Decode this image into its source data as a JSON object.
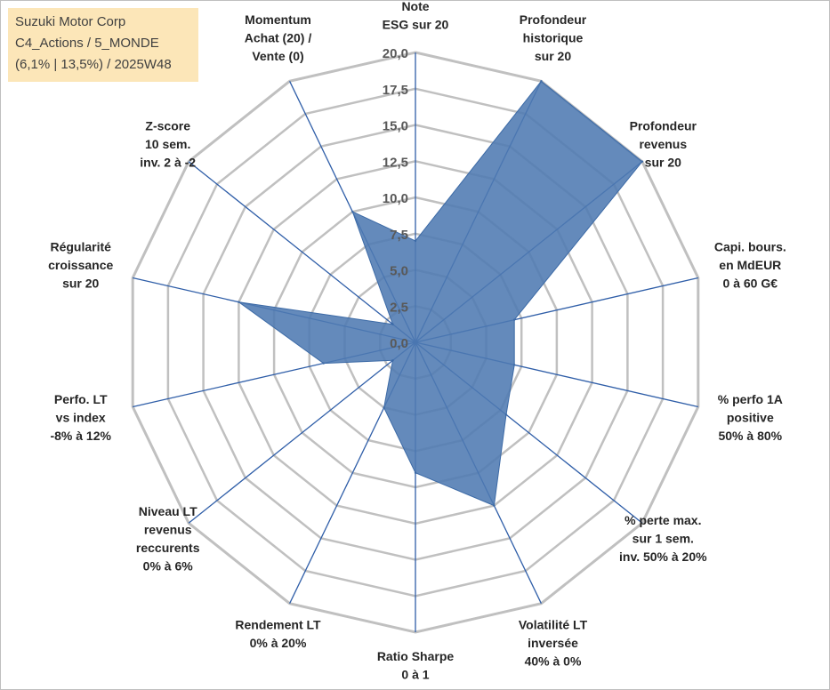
{
  "info_box": {
    "line1": "Suzuki Motor Corp",
    "line2": "C4_Actions / 5_MONDE",
    "line3": "(6,1% | 13,5%) / 2025W48"
  },
  "chart_data": {
    "type": "radar",
    "title": "",
    "rmin": 0,
    "rmax": 20,
    "tick_step": 2.5,
    "ticks": [
      "0,0",
      "2,5",
      "5,0",
      "7,5",
      "10,0",
      "12,5",
      "15,0",
      "17,5",
      "20,0"
    ],
    "categories": [
      [
        "Note",
        "ESG sur 20"
      ],
      [
        "Profondeur",
        "historique",
        "sur 20"
      ],
      [
        "Profondeur",
        "revenus",
        "sur 20"
      ],
      [
        "Capi. bours.",
        "en MdEUR",
        "0 à 60 G€"
      ],
      [
        "% perfo 1A",
        "positive",
        "50% à 80%"
      ],
      [
        "% perte max.",
        "sur 1 sem.",
        "inv. 50% à 20%"
      ],
      [
        "Volatilité LT",
        "inversée",
        "40% à 0%"
      ],
      [
        "Ratio Sharpe",
        "0 à 1"
      ],
      [
        "Rendement LT",
        "0% à 20%"
      ],
      [
        "Niveau LT",
        "revenus",
        "reccurents",
        "0% à 6%"
      ],
      [
        "Perfo. LT",
        "vs index",
        "-8% à 12%"
      ],
      [
        "Régularité",
        "croissance",
        "sur 20"
      ],
      [
        "Z-score",
        "10 sem.",
        "inv. 2 à -2"
      ],
      [
        "Momentum",
        "Achat (20) /",
        "Vente (0)"
      ]
    ],
    "series": [
      {
        "values": [
          7.0,
          20.0,
          20.0,
          7.0,
          7.0,
          8.0,
          12.5,
          9.0,
          5.0,
          2.0,
          6.5,
          12.5,
          2.0,
          10.0
        ]
      }
    ],
    "colors": {
      "fill": "#4e7ab2",
      "stroke": "#3c6aa6",
      "grid": "#c0c0c0",
      "spokes": "#2f5ea8"
    },
    "grid": true,
    "legend": "none"
  }
}
